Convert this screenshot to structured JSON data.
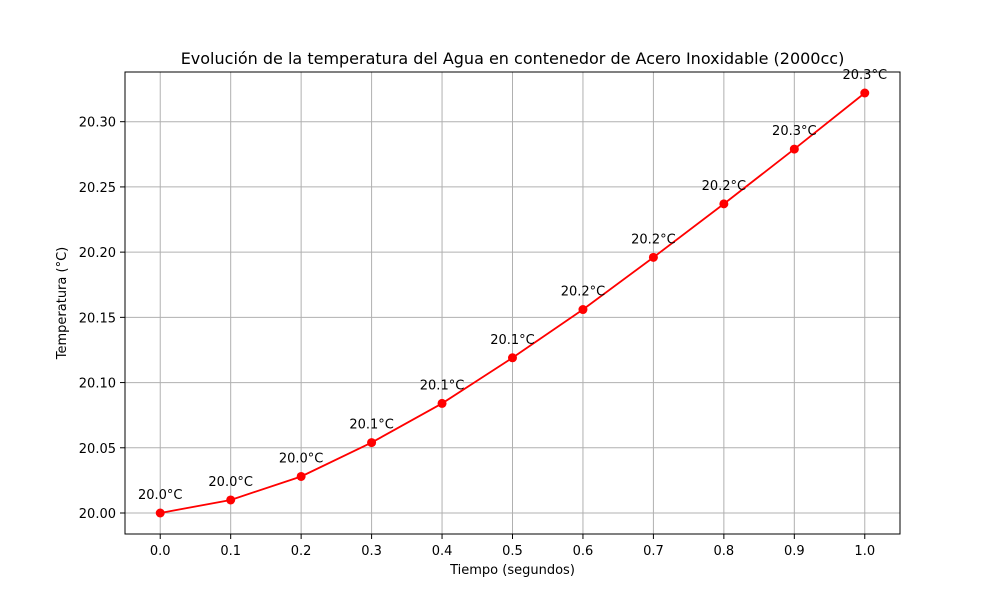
{
  "chart_data": {
    "type": "line",
    "title": "Evolución de la temperatura del Agua en contenedor de Acero Inoxidable (2000cc)",
    "xlabel": "Tiempo (segundos)",
    "ylabel": "Temperatura (°C)",
    "x": [
      0.0,
      0.1,
      0.2,
      0.3,
      0.4,
      0.5,
      0.6,
      0.7,
      0.8,
      0.9,
      1.0
    ],
    "series": [
      {
        "values": [
          20.0,
          20.01,
          20.028,
          20.054,
          20.084,
          20.119,
          20.156,
          20.196,
          20.237,
          20.279,
          20.322
        ],
        "labels": [
          "20.0°C",
          "20.0°C",
          "20.0°C",
          "20.1°C",
          "20.1°C",
          "20.1°C",
          "20.2°C",
          "20.2°C",
          "20.2°C",
          "20.3°C",
          "20.3°C"
        ],
        "color": "#ff0000",
        "marker": "circle"
      }
    ],
    "xlim": [
      -0.05,
      1.05
    ],
    "ylim": [
      19.9839,
      20.3381
    ],
    "xticks": [
      "0.0",
      "0.1",
      "0.2",
      "0.3",
      "0.4",
      "0.5",
      "0.6",
      "0.7",
      "0.8",
      "0.9",
      "1.0"
    ],
    "yticks": [
      "20.00",
      "20.05",
      "20.10",
      "20.15",
      "20.20",
      "20.25",
      "20.30"
    ],
    "ytick_values": [
      20.0,
      20.05,
      20.1,
      20.15,
      20.2,
      20.25,
      20.3
    ],
    "grid": true,
    "grid_color": "#b0b0b0"
  }
}
